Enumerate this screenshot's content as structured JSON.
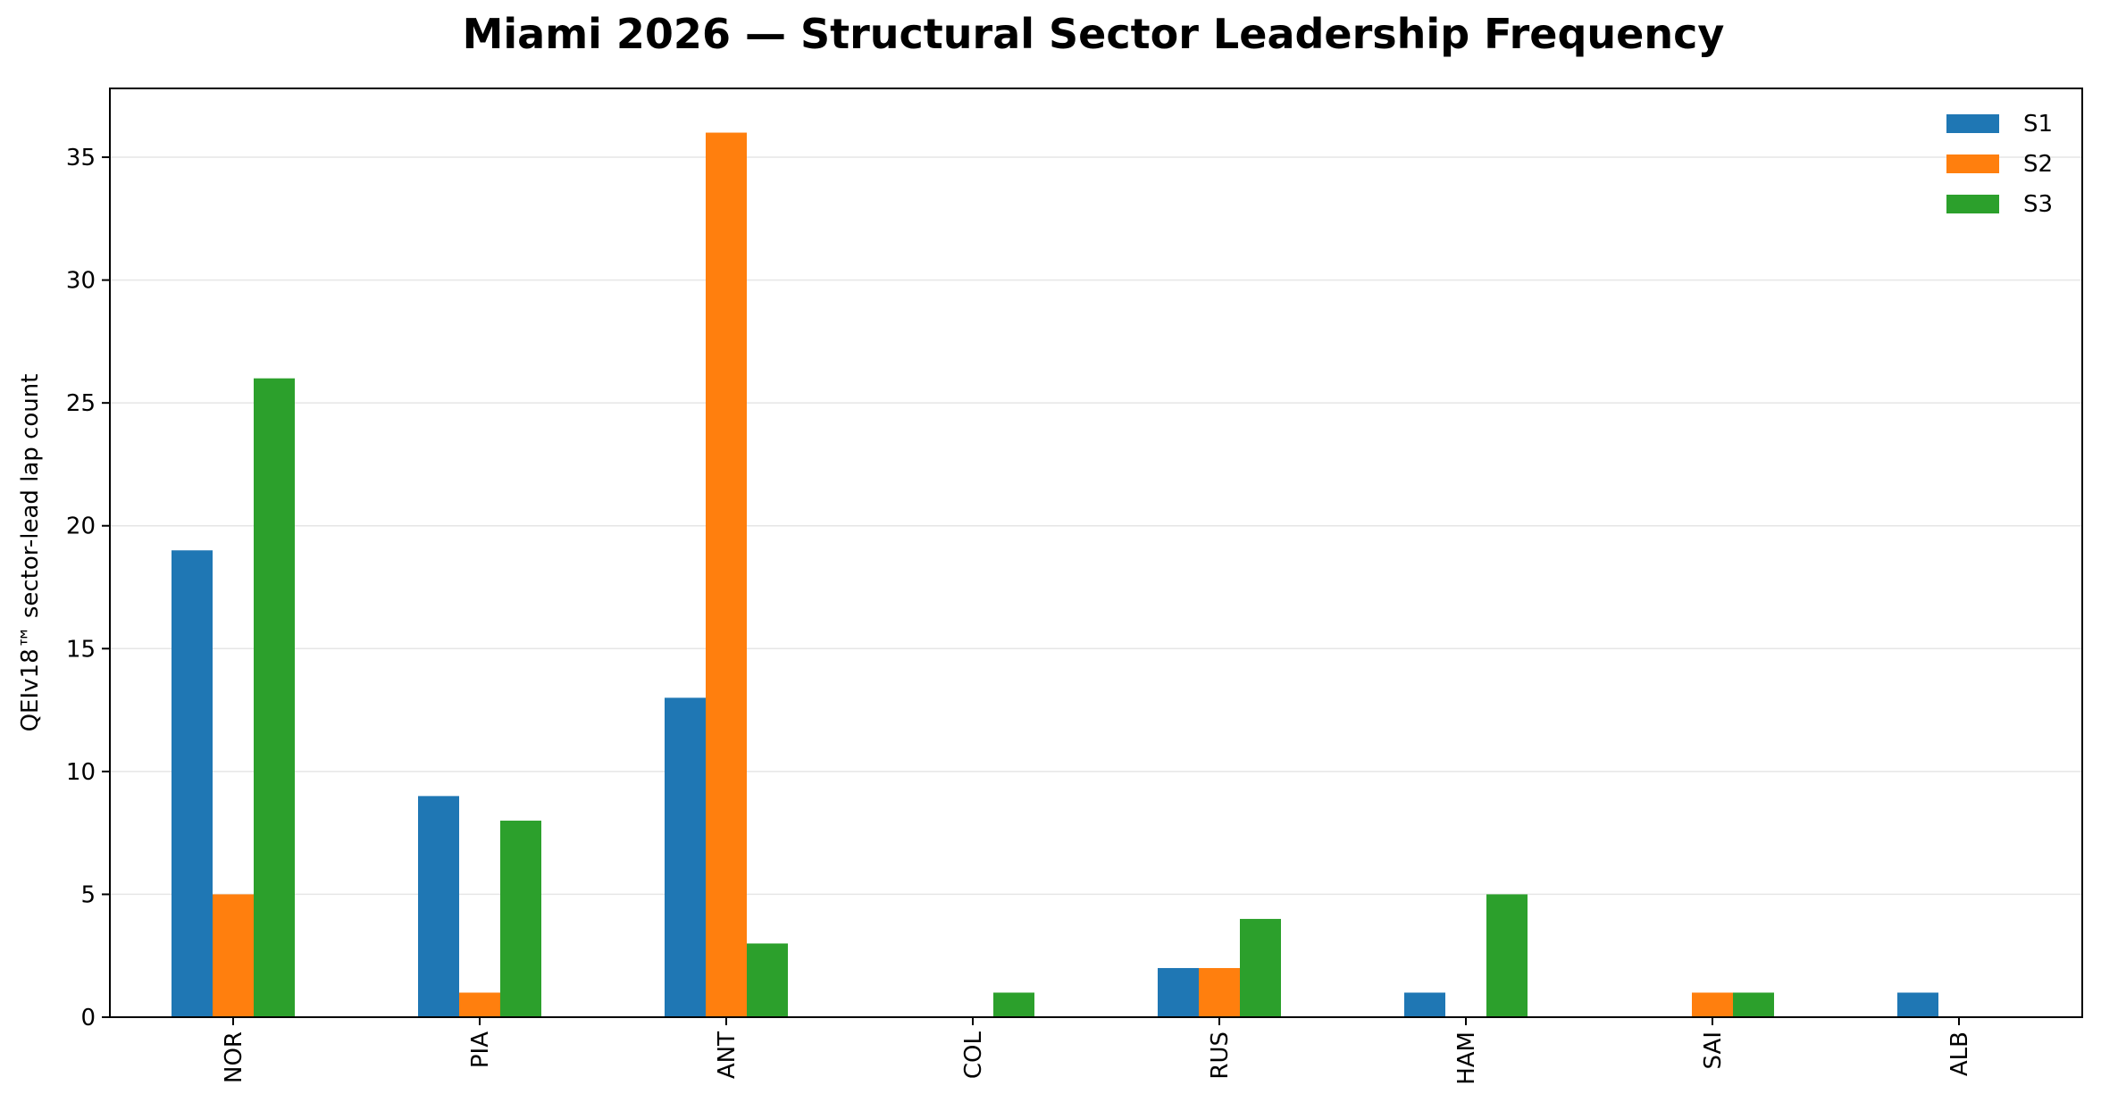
{
  "chart_data": {
    "type": "bar",
    "title": "Miami 2026 — Structural Sector Leadership Frequency",
    "xlabel": "",
    "ylabel": "QEIv18™ sector-lead lap count",
    "categories": [
      "NOR",
      "PIA",
      "ANT",
      "COL",
      "RUS",
      "HAM",
      "SAI",
      "ALB"
    ],
    "series": [
      {
        "name": "S1",
        "color": "#1f77b4",
        "values": [
          19,
          9,
          13,
          0,
          2,
          1,
          0,
          1
        ]
      },
      {
        "name": "S2",
        "color": "#ff7f0e",
        "values": [
          5,
          1,
          36,
          0,
          2,
          0,
          1,
          0
        ]
      },
      {
        "name": "S3",
        "color": "#2ca02c",
        "values": [
          26,
          8,
          3,
          1,
          4,
          5,
          1,
          0
        ]
      }
    ],
    "ylim": [
      0,
      37.8
    ],
    "yticks": [
      0,
      5,
      10,
      15,
      20,
      25,
      30,
      35
    ],
    "grid": "y",
    "legend_position": "top-right"
  }
}
